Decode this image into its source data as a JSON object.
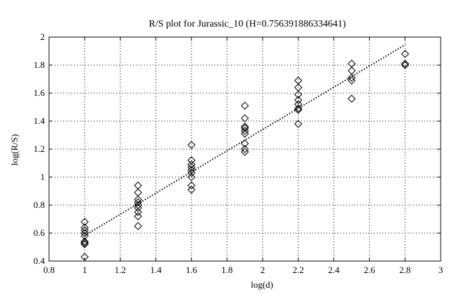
{
  "chart_data": {
    "type": "scatter",
    "title": "R/S plot for Jurassic_10 (H=0.756391886334641)",
    "xlabel": "log(d)",
    "ylabel": "log(R/S)",
    "xlim": [
      0.8,
      3
    ],
    "ylim": [
      0.4,
      2
    ],
    "xticks": [
      "0.8",
      "1",
      "1.2",
      "1.4",
      "1.6",
      "1.8",
      "2",
      "2.2",
      "2.4",
      "2.6",
      "2.8",
      "3"
    ],
    "yticks": [
      "0.4",
      "0.6",
      "0.8",
      "1",
      "1.2",
      "1.4",
      "1.6",
      "1.8",
      "2"
    ],
    "grid": true,
    "marker": "diamond",
    "points": [
      [
        1,
        0.43
      ],
      [
        1,
        0.52
      ],
      [
        1,
        0.53
      ],
      [
        1,
        0.54
      ],
      [
        1,
        0.58
      ],
      [
        1,
        0.6
      ],
      [
        1,
        0.62
      ],
      [
        1,
        0.64
      ],
      [
        1,
        0.68
      ],
      [
        1.3,
        0.65
      ],
      [
        1.3,
        0.72
      ],
      [
        1.3,
        0.75
      ],
      [
        1.3,
        0.78
      ],
      [
        1.3,
        0.8
      ],
      [
        1.3,
        0.82
      ],
      [
        1.3,
        0.84
      ],
      [
        1.3,
        0.89
      ],
      [
        1.3,
        0.94
      ],
      [
        1.6,
        0.91
      ],
      [
        1.6,
        0.94
      ],
      [
        1.6,
        1.0
      ],
      [
        1.6,
        1.03
      ],
      [
        1.6,
        1.05
      ],
      [
        1.6,
        1.07
      ],
      [
        1.6,
        1.09
      ],
      [
        1.6,
        1.12
      ],
      [
        1.6,
        1.23
      ],
      [
        1.9,
        1.18
      ],
      [
        1.9,
        1.2
      ],
      [
        1.9,
        1.24
      ],
      [
        1.9,
        1.31
      ],
      [
        1.9,
        1.33
      ],
      [
        1.9,
        1.35
      ],
      [
        1.9,
        1.36
      ],
      [
        1.9,
        1.42
      ],
      [
        1.9,
        1.51
      ],
      [
        2.2,
        1.38
      ],
      [
        2.2,
        1.48
      ],
      [
        2.2,
        1.49
      ],
      [
        2.2,
        1.52
      ],
      [
        2.2,
        1.55
      ],
      [
        2.2,
        1.59
      ],
      [
        2.2,
        1.64
      ],
      [
        2.2,
        1.69
      ],
      [
        2.5,
        1.56
      ],
      [
        2.5,
        1.69
      ],
      [
        2.5,
        1.71
      ],
      [
        2.5,
        1.76
      ],
      [
        2.5,
        1.81
      ],
      [
        2.8,
        1.8
      ],
      [
        2.8,
        1.81
      ],
      [
        2.8,
        1.88
      ]
    ],
    "fit_line": {
      "x": [
        1.0,
        2.8
      ],
      "y": [
        0.583,
        1.945
      ],
      "style": "dotted"
    }
  }
}
